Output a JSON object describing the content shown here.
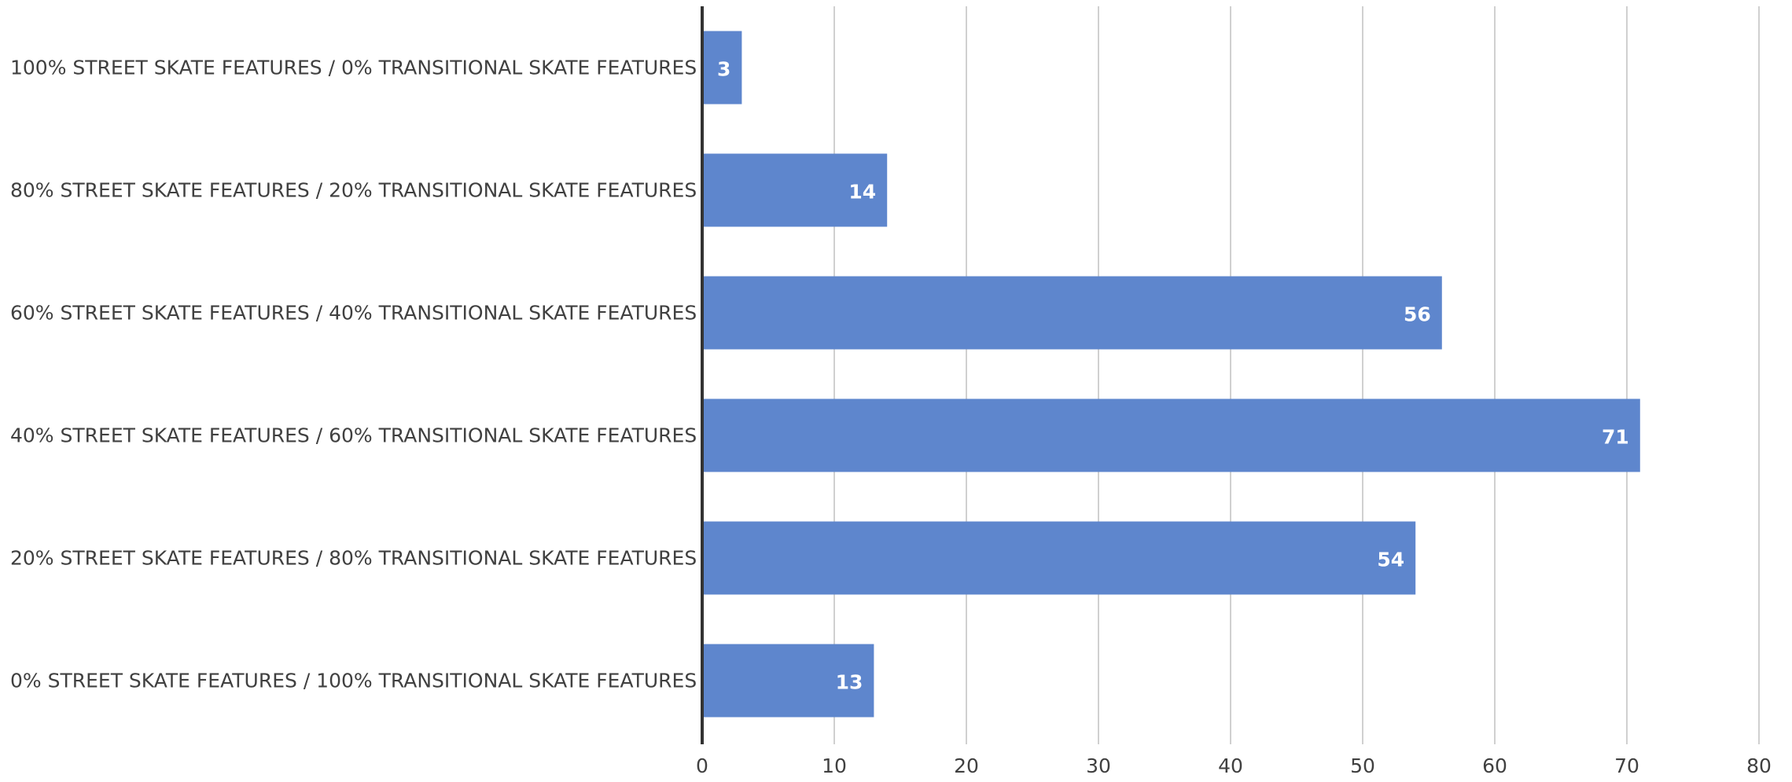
{
  "chart_data": {
    "type": "bar",
    "orientation": "horizontal",
    "categories": [
      "100% STREET SKATE FEATURES / 0% TRANSITIONAL SKATE FEATURES",
      "80% STREET SKATE FEATURES / 20% TRANSITIONAL SKATE FEATURES",
      "60% STREET SKATE FEATURES / 40% TRANSITIONAL SKATE FEATURES",
      "40% STREET SKATE FEATURES / 60% TRANSITIONAL SKATE FEATURES",
      "20% STREET SKATE FEATURES / 80% TRANSITIONAL SKATE FEATURES",
      "0% STREET SKATE FEATURES / 100% TRANSITIONAL SKATE FEATURES"
    ],
    "values": [
      3,
      14,
      56,
      71,
      54,
      13
    ],
    "data_labels": [
      "3",
      "14",
      "56",
      "71",
      "54",
      "13"
    ],
    "title": "",
    "xlabel": "",
    "ylabel": "",
    "xlim": [
      0,
      80
    ],
    "x_ticks": [
      "0",
      "10",
      "20",
      "30",
      "40",
      "50",
      "60",
      "70",
      "80"
    ],
    "grid": "vertical",
    "legend": "none",
    "bar_color": "#5e86cd",
    "gridline_color": "#d0d0d0",
    "axis_color": "#333333",
    "text_color": "#404040",
    "data_label_color": "#ffffff"
  }
}
